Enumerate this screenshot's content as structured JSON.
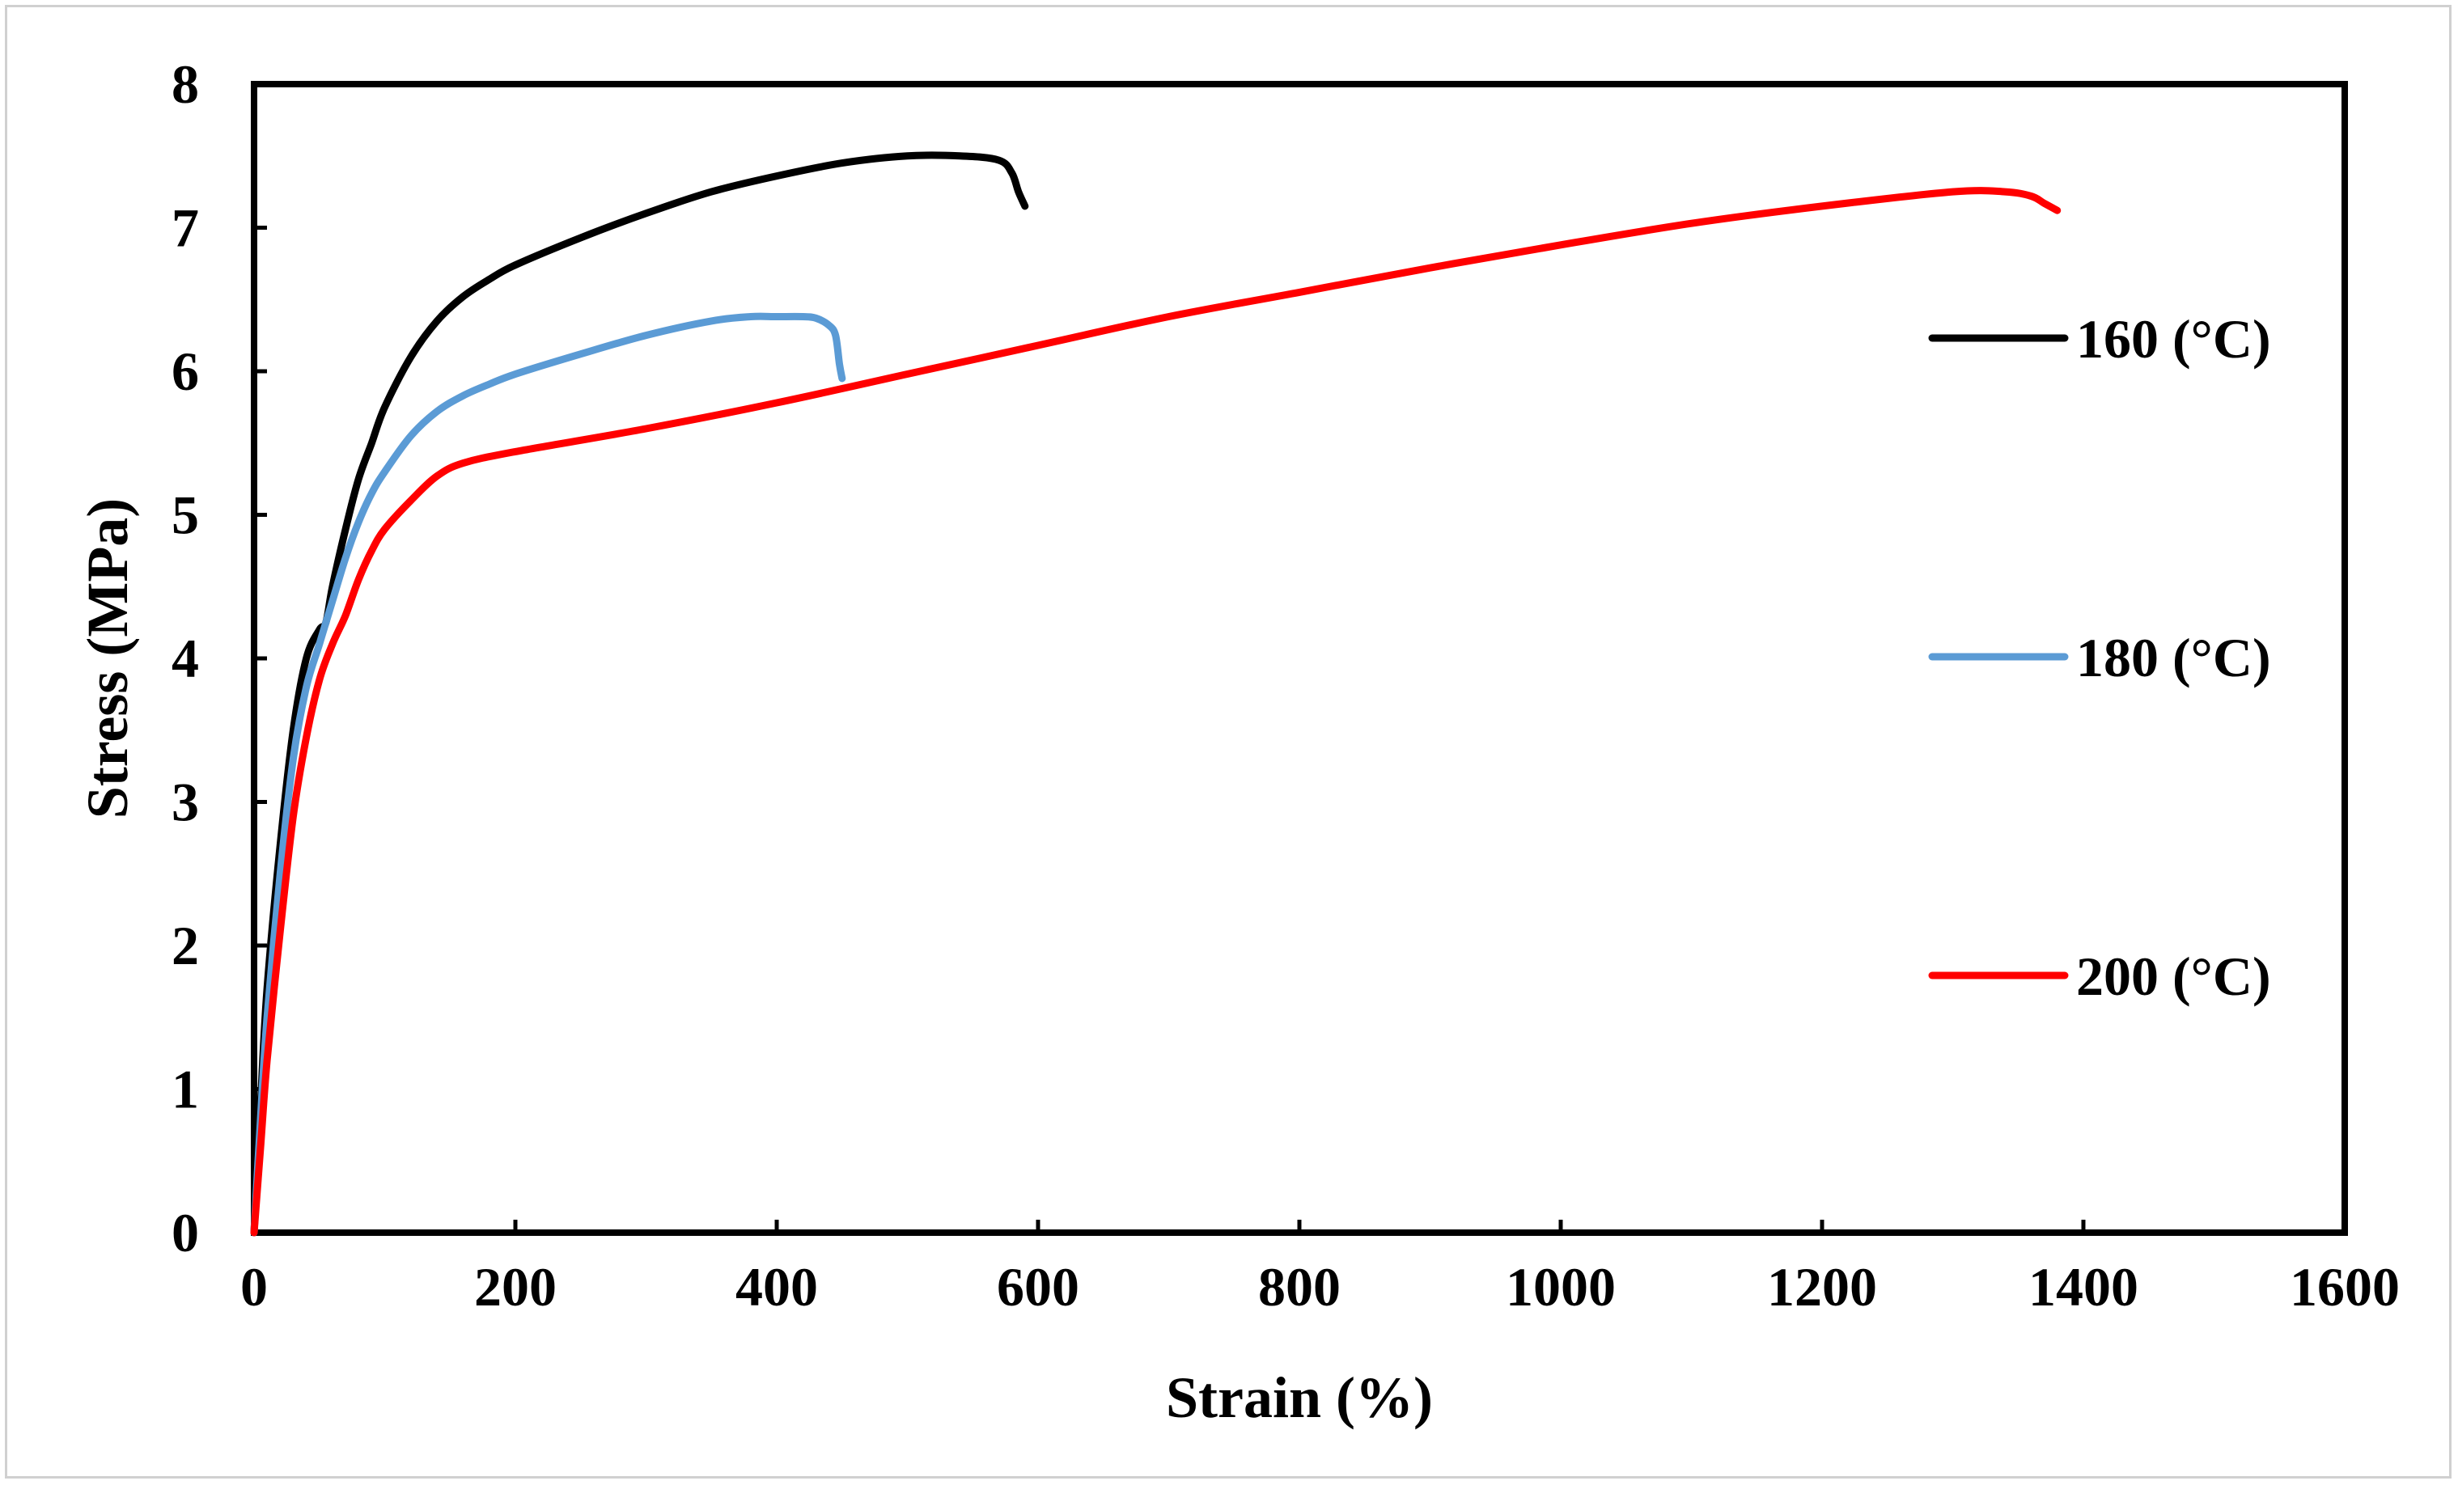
{
  "chart_data": {
    "type": "line",
    "title": "",
    "xlabel": "Strain (%)",
    "ylabel": "Stress  (MPa)",
    "xlim": [
      0,
      1600
    ],
    "ylim": [
      0,
      8
    ],
    "x_ticks": [
      0,
      200,
      400,
      600,
      800,
      1000,
      1200,
      1400,
      1600
    ],
    "y_ticks": [
      0,
      1,
      2,
      3,
      4,
      5,
      6,
      7,
      8
    ],
    "x_tick_labels": [
      "0",
      "200",
      "400",
      "600",
      "800",
      "1000",
      "1200",
      "1400",
      "1600"
    ],
    "y_tick_labels": [
      "0",
      "1",
      "2",
      "3",
      "4",
      "5",
      "6",
      "7",
      "8"
    ],
    "grid": false,
    "legend_position": "right",
    "series": [
      {
        "name": "160 (°C)",
        "color": "#000000",
        "x": [
          0,
          5,
          10,
          20,
          30,
          40,
          50,
          55,
          60,
          70,
          80,
          90,
          100,
          120,
          140,
          160,
          180,
          200,
          250,
          300,
          350,
          400,
          450,
          500,
          540,
          570,
          580,
          585,
          590
        ],
        "y": [
          0,
          0.9,
          1.7,
          2.7,
          3.5,
          4.0,
          4.2,
          4.25,
          4.5,
          4.9,
          5.25,
          5.5,
          5.75,
          6.1,
          6.35,
          6.52,
          6.64,
          6.74,
          6.93,
          7.1,
          7.25,
          7.36,
          7.45,
          7.5,
          7.5,
          7.47,
          7.38,
          7.25,
          7.15
        ]
      },
      {
        "name": "180 (°C)",
        "color": "#5b9bd5",
        "x": [
          0,
          5,
          10,
          20,
          30,
          40,
          50,
          60,
          70,
          80,
          90,
          100,
          120,
          140,
          160,
          180,
          200,
          250,
          300,
          350,
          380,
          400,
          420,
          430,
          440,
          445,
          448,
          450
        ],
        "y": [
          0,
          0.8,
          1.5,
          2.5,
          3.3,
          3.8,
          4.1,
          4.4,
          4.7,
          4.95,
          5.15,
          5.3,
          5.55,
          5.72,
          5.83,
          5.91,
          5.98,
          6.12,
          6.25,
          6.35,
          6.38,
          6.38,
          6.38,
          6.37,
          6.32,
          6.25,
          6.05,
          5.95
        ]
      },
      {
        "name": "200 (°C)",
        "color": "#ff0000",
        "x": [
          0,
          5,
          10,
          20,
          30,
          40,
          50,
          60,
          70,
          80,
          90,
          100,
          120,
          140,
          160,
          200,
          300,
          400,
          500,
          600,
          700,
          800,
          900,
          1000,
          1100,
          1200,
          1300,
          1340,
          1360,
          1370,
          1380
        ],
        "y": [
          0,
          0.6,
          1.2,
          2.1,
          2.9,
          3.45,
          3.85,
          4.1,
          4.3,
          4.55,
          4.75,
          4.9,
          5.1,
          5.27,
          5.36,
          5.44,
          5.6,
          5.78,
          5.98,
          6.18,
          6.38,
          6.55,
          6.72,
          6.88,
          7.03,
          7.15,
          7.25,
          7.25,
          7.22,
          7.17,
          7.12
        ]
      }
    ]
  }
}
